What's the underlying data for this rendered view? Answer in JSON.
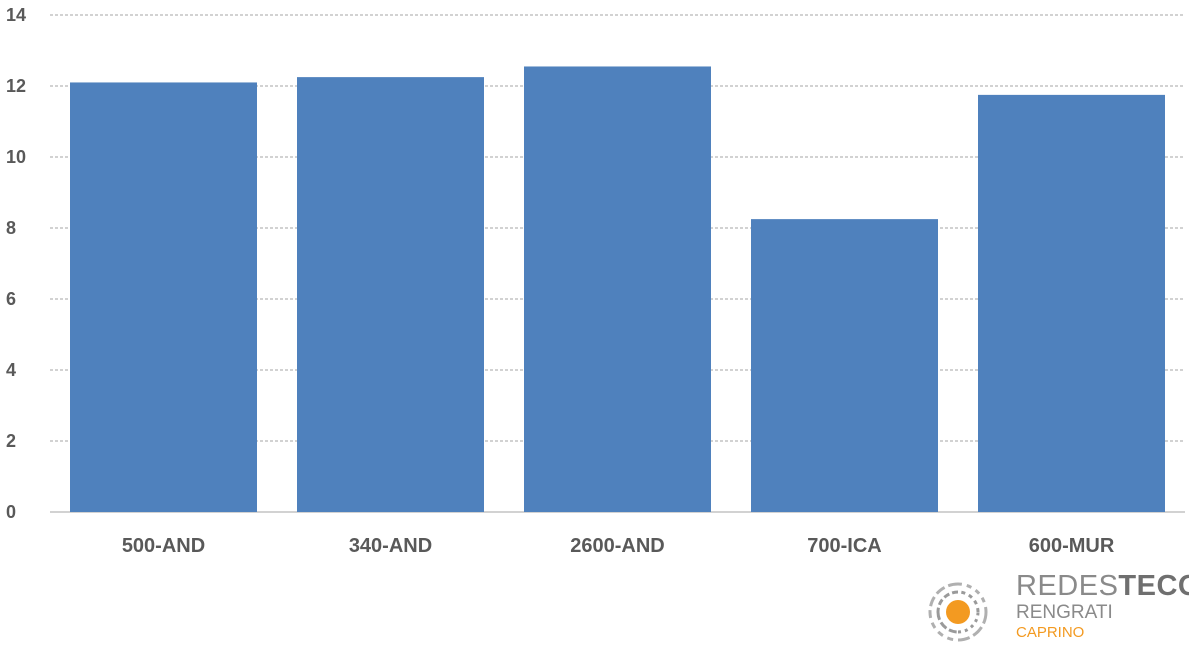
{
  "chart_data": {
    "type": "bar",
    "categories": [
      "500-AND",
      "340-AND",
      "2600-AND",
      "700-ICA",
      "600-MUR"
    ],
    "values": [
      12.1,
      12.25,
      12.55,
      8.25,
      11.75
    ],
    "ylim": [
      0,
      14
    ],
    "y_ticks": [
      0,
      2,
      4,
      6,
      8,
      10,
      12,
      14
    ],
    "grid": "horizontal dashed",
    "legend": "none",
    "bar_color": "#4f81bd",
    "title": "",
    "xlabel": "",
    "ylabel": ""
  },
  "logo": {
    "brand_light": "REDES",
    "brand_bold": "TECO",
    "line2": "RENGRATI",
    "line3": "CAPRINO",
    "accent_color": "#f39a21",
    "icon": "sun-radial-icon"
  }
}
